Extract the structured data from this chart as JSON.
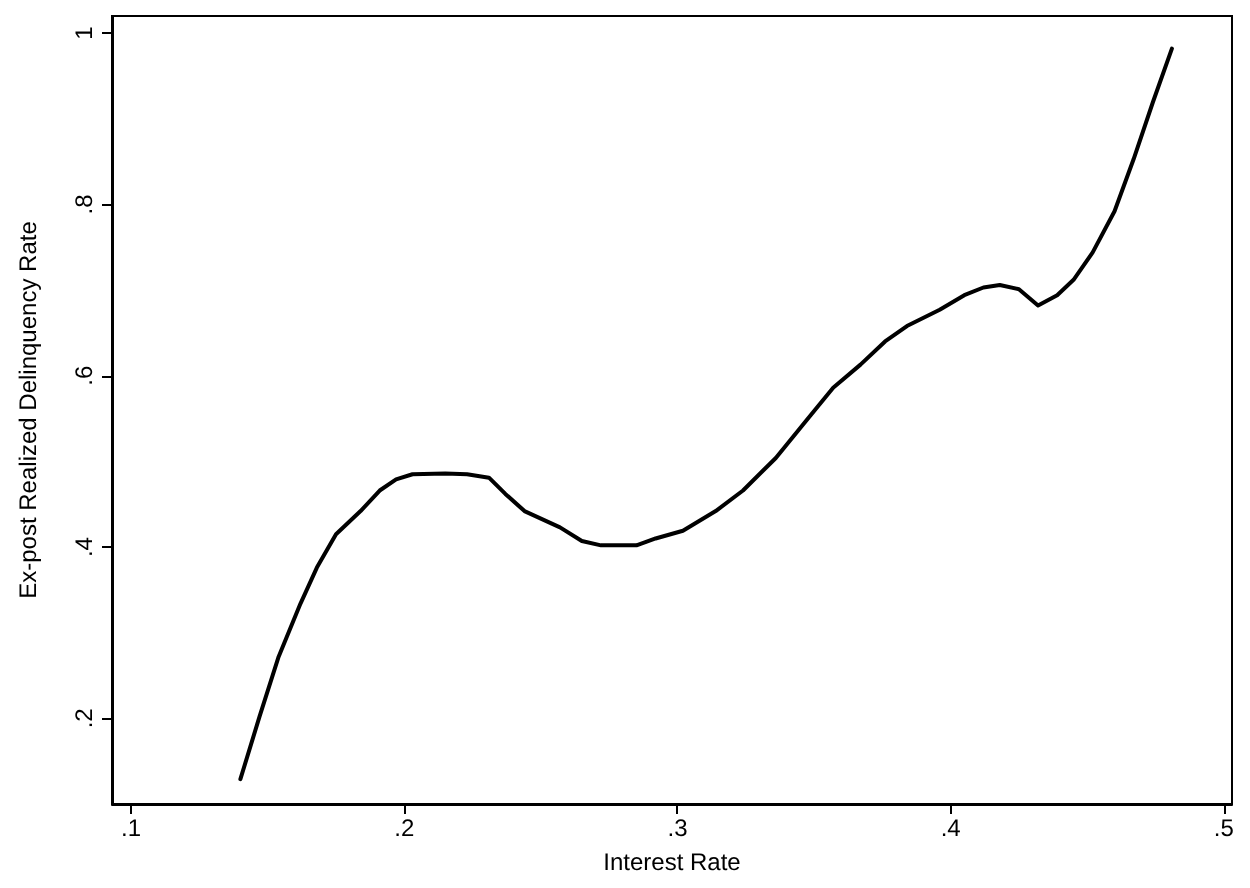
{
  "chart_data": {
    "type": "line",
    "xlabel": "Interest Rate",
    "ylabel": "Ex-post Realized Delinquency Rate",
    "x": [
      0.14,
      0.147,
      0.154,
      0.162,
      0.168,
      0.175,
      0.184,
      0.191,
      0.197,
      0.203,
      0.215,
      0.223,
      0.231,
      0.237,
      0.244,
      0.257,
      0.265,
      0.272,
      0.285,
      0.292,
      0.302,
      0.314,
      0.324,
      0.336,
      0.348,
      0.357,
      0.367,
      0.376,
      0.384,
      0.396,
      0.405,
      0.412,
      0.418,
      0.425,
      0.432,
      0.439,
      0.445,
      0.452,
      0.46,
      0.467,
      0.474,
      0.481
    ],
    "series": [
      {
        "color": "#000000",
        "values": [
          0.129,
          0.202,
          0.272,
          0.334,
          0.376,
          0.415,
          0.442,
          0.466,
          0.479,
          0.485,
          0.486,
          0.485,
          0.481,
          0.462,
          0.442,
          0.423,
          0.407,
          0.402,
          0.402,
          0.41,
          0.419,
          0.442,
          0.466,
          0.504,
          0.551,
          0.586,
          0.613,
          0.64,
          0.658,
          0.677,
          0.694,
          0.703,
          0.706,
          0.701,
          0.682,
          0.694,
          0.712,
          0.744,
          0.792,
          0.853,
          0.919,
          0.982
        ]
      }
    ],
    "xlim": [
      0.093,
      0.503
    ],
    "ylim": [
      0.1,
      1.02
    ],
    "xticks": [
      {
        "value": 0.1,
        "label": ".1"
      },
      {
        "value": 0.2,
        "label": ".2"
      },
      {
        "value": 0.3,
        "label": ".3"
      },
      {
        "value": 0.4,
        "label": ".4"
      },
      {
        "value": 0.5,
        "label": ".5"
      }
    ],
    "yticks": [
      {
        "value": 0.2,
        "label": ".2"
      },
      {
        "value": 0.4,
        "label": ".4"
      },
      {
        "value": 0.6,
        "label": ".6"
      },
      {
        "value": 0.8,
        "label": ".8"
      },
      {
        "value": 1,
        "label": "1"
      }
    ],
    "marker": "none",
    "line_style": "solid"
  }
}
